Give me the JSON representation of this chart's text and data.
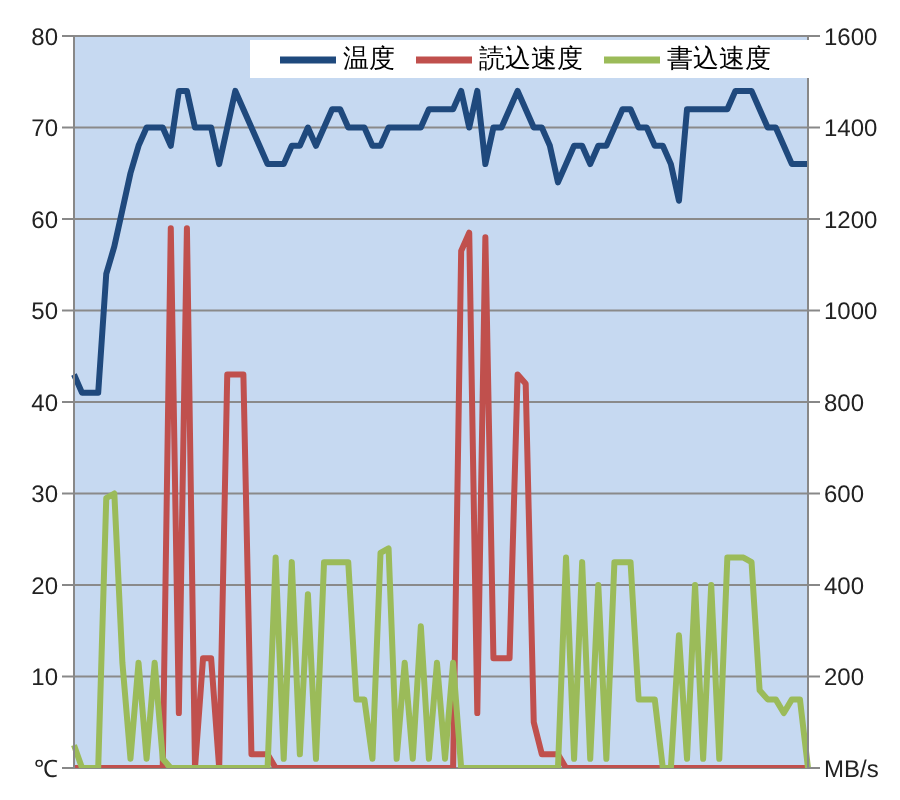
{
  "chart_data": {
    "type": "line",
    "categories": [
      null,
      null,
      null,
      null,
      null,
      null,
      null,
      null,
      null,
      null,
      null,
      null,
      null,
      null,
      null,
      null,
      null,
      null,
      null,
      null,
      null,
      null,
      null,
      null,
      null,
      null,
      null,
      null,
      null,
      null,
      null,
      null,
      null,
      null,
      null,
      null,
      null,
      null,
      null,
      null,
      null,
      null,
      null,
      null,
      null,
      null,
      null,
      null,
      null,
      null,
      null,
      null,
      null,
      null,
      null,
      null,
      null,
      null,
      null,
      null,
      null,
      null,
      null,
      null,
      null,
      null,
      null,
      null,
      null,
      null,
      null,
      null,
      null,
      null,
      null,
      null,
      null,
      null,
      null,
      null,
      null,
      null,
      null,
      null,
      null,
      null,
      null,
      null,
      null,
      null,
      null,
      null
    ],
    "series": [
      {
        "name": "温度",
        "color": "#1f497d",
        "values": [
          43,
          41,
          41,
          41,
          54,
          57,
          61,
          65,
          68,
          70,
          70,
          70,
          68,
          74,
          74,
          70,
          70,
          70,
          66,
          70,
          74,
          72,
          70,
          68,
          66,
          66,
          66,
          68,
          68,
          70,
          68,
          70,
          72,
          72,
          70,
          70,
          70,
          68,
          68,
          70,
          70,
          70,
          70,
          70,
          72,
          72,
          72,
          72,
          74,
          70,
          74,
          66,
          70,
          70,
          72,
          74,
          72,
          70,
          70,
          68,
          64,
          66,
          68,
          68,
          66,
          68,
          68,
          70,
          72,
          72,
          70,
          70,
          68,
          68,
          66,
          62,
          72,
          72,
          72,
          72,
          72,
          72,
          74,
          74,
          74,
          72,
          70,
          70,
          68,
          66,
          66,
          66
        ]
      },
      {
        "name": "読込速度",
        "color": "#c0504d",
        "axis": "y2",
        "values": [
          0,
          0,
          0,
          0,
          0,
          0,
          0,
          0,
          0,
          0,
          0,
          0,
          1180,
          120,
          1180,
          0,
          240,
          240,
          0,
          860,
          860,
          860,
          30,
          30,
          30,
          0,
          0,
          0,
          0,
          0,
          0,
          0,
          0,
          0,
          0,
          0,
          0,
          0,
          0,
          0,
          0,
          0,
          0,
          0,
          0,
          0,
          0,
          0,
          1130,
          1170,
          120,
          1160,
          240,
          240,
          240,
          860,
          840,
          100,
          30,
          30,
          30,
          0,
          0,
          0,
          0,
          0,
          0,
          0,
          0,
          0,
          0,
          0,
          0,
          0,
          0,
          0,
          0,
          0,
          0,
          0,
          0,
          0,
          0,
          0,
          0,
          0,
          0,
          0,
          0,
          0,
          0,
          0
        ]
      },
      {
        "name": "書込速度",
        "color": "#9bbb59",
        "axis": "y2",
        "values": [
          50,
          0,
          0,
          0,
          590,
          600,
          230,
          20,
          230,
          20,
          230,
          20,
          0,
          0,
          0,
          0,
          0,
          0,
          0,
          0,
          0,
          0,
          0,
          0,
          0,
          460,
          20,
          450,
          30,
          380,
          20,
          450,
          450,
          450,
          450,
          150,
          150,
          20,
          470,
          480,
          20,
          230,
          20,
          310,
          20,
          230,
          20,
          230,
          0,
          0,
          0,
          0,
          0,
          0,
          0,
          0,
          0,
          0,
          0,
          0,
          0,
          460,
          20,
          450,
          20,
          400,
          20,
          450,
          450,
          450,
          150,
          150,
          150,
          0,
          0,
          290,
          20,
          400,
          20,
          400,
          20,
          460,
          460,
          460,
          450,
          170,
          150,
          150,
          120,
          150,
          150,
          0
        ]
      }
    ],
    "ylim": [
      0,
      80
    ],
    "yticks": [
      {
        "value": 0,
        "label": "℃"
      },
      10,
      20,
      30,
      40,
      50,
      60,
      70,
      80
    ],
    "y2lim": [
      0,
      1600
    ],
    "y2ticks": [
      {
        "value": 0,
        "label": "MB/s"
      },
      200,
      400,
      600,
      800,
      1000,
      1200,
      1400,
      1600
    ],
    "grid": "y",
    "legend": "top right",
    "tick_labels": "y",
    "marker": "none",
    "line_style": "solid"
  }
}
